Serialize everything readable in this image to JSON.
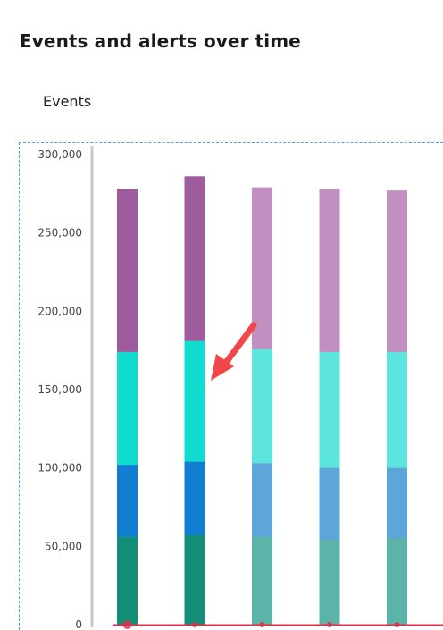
{
  "page": {
    "title": "Events and alerts over time",
    "section_label": "Events"
  },
  "colors": {
    "series": [
      "#138f78",
      "#127ed1",
      "#10dcd0",
      "#9e5b9e"
    ],
    "series_faded": [
      "#5cb3a7",
      "#5ca6da",
      "#5ce5df",
      "#c190c0"
    ],
    "axis": "#c8c8c8",
    "baseline": "#d9304a",
    "annotation_arrow": "#f04848",
    "frame": "#48a6d6"
  },
  "annotation": {
    "type": "arrow",
    "icon": "red-arrow-icon",
    "points_to": "bar-2-segment-3"
  },
  "chart_data": {
    "type": "bar",
    "stacked": true,
    "categories": [
      "",
      "",
      "",
      "",
      ""
    ],
    "series": [
      {
        "values": [
          56000,
          57000,
          56000,
          54000,
          55000
        ]
      },
      {
        "values": [
          46000,
          47000,
          47000,
          46000,
          45000
        ]
      },
      {
        "values": [
          72000,
          77000,
          73000,
          74000,
          74000
        ]
      },
      {
        "values": [
          104000,
          105000,
          103000,
          104000,
          103000
        ]
      }
    ],
    "highlighted_bar_index": 1,
    "ylim": [
      0,
      300000
    ],
    "yticks": [
      "0",
      "50,000",
      "100,000",
      "150,000",
      "200,000",
      "250,000",
      "300,000"
    ],
    "ytick_values": [
      0,
      50000,
      100000,
      150000,
      200000,
      250000,
      300000
    ],
    "grid": false,
    "legend": "none",
    "xlabel": "",
    "ylabel": ""
  }
}
